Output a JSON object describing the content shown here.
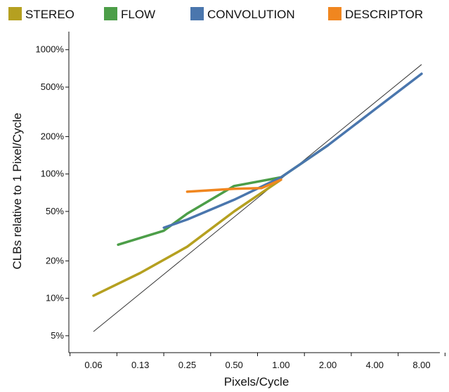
{
  "chart_data": {
    "type": "line",
    "x_scale": "log2",
    "y_scale": "log",
    "x_tick_labels": [
      "0.06",
      "0.13",
      "0.25",
      "0.50",
      "1.00",
      "2.00",
      "4.00",
      "8.00"
    ],
    "x_tick_values": [
      0.0625,
      0.125,
      0.25,
      0.5,
      1,
      2,
      4,
      8
    ],
    "y_tick_labels": [
      "5%",
      "10%",
      "20%",
      "50%",
      "100%",
      "200%",
      "500%",
      "1000%"
    ],
    "y_tick_values": [
      5,
      10,
      20,
      50,
      100,
      200,
      500,
      1000
    ],
    "xlim": [
      0.0625,
      8
    ],
    "ylim": [
      4.5,
      1150
    ],
    "xlabel": "Pixels/Cycle",
    "ylabel": "CLBs relative to 1 Pixel/Cycle",
    "legend_position": "top",
    "grid": false,
    "series": [
      {
        "name": "STEREO",
        "color": "#b5a020",
        "points": [
          [
            0.0625,
            10.5
          ],
          [
            0.125,
            16
          ],
          [
            0.25,
            26
          ],
          [
            0.5,
            50
          ],
          [
            1,
            90
          ]
        ]
      },
      {
        "name": "FLOW",
        "color": "#4c9e48",
        "points": [
          [
            0.09,
            27
          ],
          [
            0.177,
            35
          ],
          [
            0.25,
            48
          ],
          [
            0.5,
            80
          ],
          [
            1,
            94
          ],
          [
            2,
            170
          ]
        ]
      },
      {
        "name": "CONVOLUTION",
        "color": "#4a76ad",
        "points": [
          [
            0.177,
            37
          ],
          [
            0.25,
            43
          ],
          [
            0.5,
            62
          ],
          [
            1,
            94
          ],
          [
            2,
            170
          ],
          [
            4,
            330
          ],
          [
            8,
            640
          ]
        ]
      },
      {
        "name": "DESCRIPTOR",
        "color": "#f0861f",
        "points": [
          [
            0.25,
            72
          ],
          [
            0.5,
            76
          ],
          [
            0.75,
            77
          ],
          [
            1,
            90
          ]
        ]
      }
    ],
    "reference_line": {
      "color": "#333333",
      "points": [
        [
          0.0625,
          5.4
        ],
        [
          8,
          760
        ]
      ]
    }
  }
}
